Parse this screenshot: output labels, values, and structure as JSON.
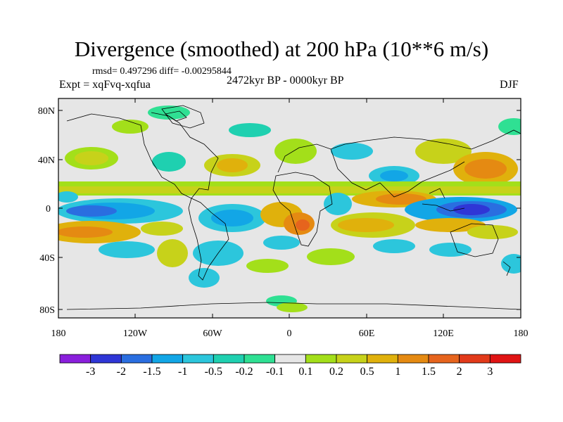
{
  "title": "Divergence (smoothed) at 200 hPa (10**6 m/s)",
  "stats": "rmsd= 0.497296 diff= -0.00295844",
  "experiment": "Expt = xqFvq-xqfua",
  "period": "2472kyr BP - 0000kyr BP",
  "season": "DJF",
  "lat_labels": [
    "80N",
    "40N",
    "0",
    "40S",
    "80S"
  ],
  "lon_labels": [
    "180",
    "120W",
    "60W",
    "0",
    "60E",
    "120E",
    "180"
  ],
  "colorbar": {
    "labels": [
      "-3",
      "-2",
      "-1.5",
      "-1",
      "-0.5",
      "-0.2",
      "-0.1",
      "0.1",
      "0.2",
      "0.5",
      "1",
      "1.5",
      "2",
      "3"
    ],
    "colors": [
      "#8a1fdc",
      "#2f36d6",
      "#2a6ee0",
      "#12a6e6",
      "#2cc6dc",
      "#1fd0b0",
      "#2fe093",
      "#e6e6e6",
      "#a3df1a",
      "#c7d21a",
      "#e0b10c",
      "#e58a12",
      "#e6641d",
      "#e23a1a",
      "#e01414"
    ]
  }
}
